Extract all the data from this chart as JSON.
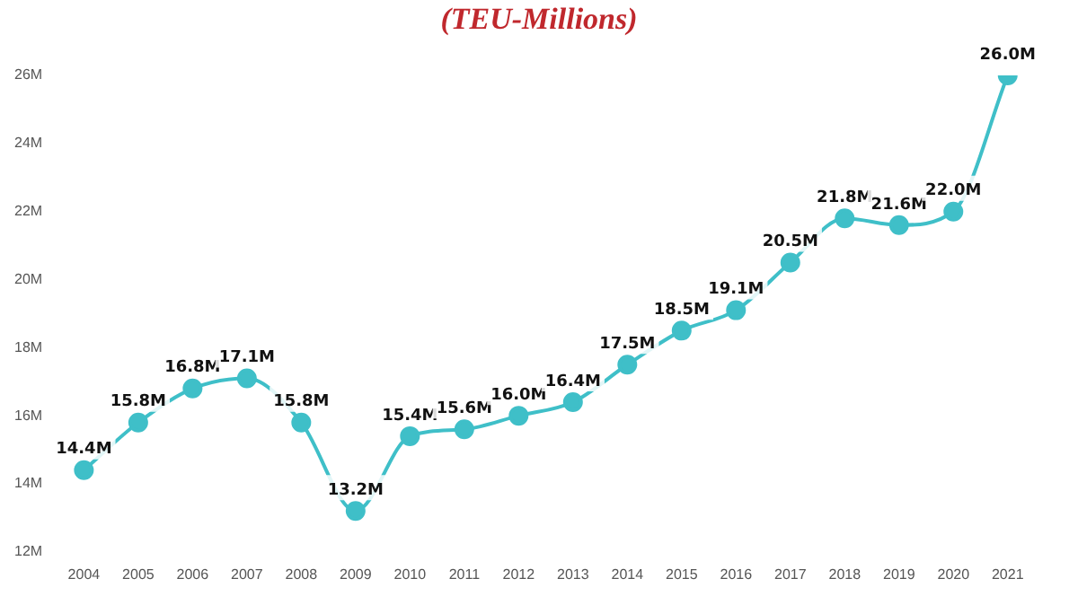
{
  "chart_data": {
    "type": "line",
    "title": "(TEU-Millions)",
    "categories": [
      "2004",
      "2005",
      "2006",
      "2007",
      "2008",
      "2009",
      "2010",
      "2011",
      "2012",
      "2013",
      "2014",
      "2015",
      "2016",
      "2017",
      "2018",
      "2019",
      "2020",
      "2021"
    ],
    "series": [
      {
        "color": "#3fbfc8",
        "values": [
          14.4,
          15.8,
          16.8,
          17.1,
          15.8,
          13.2,
          15.4,
          15.6,
          16.0,
          16.4,
          17.5,
          18.5,
          19.1,
          20.5,
          21.8,
          21.6,
          22.0,
          26.0
        ],
        "value_labels": [
          "14.4M",
          "15.8M",
          "16.8M",
          "17.1M",
          "15.8M",
          "13.2M",
          "15.4M",
          "15.6M",
          "16.0M",
          "16.4M",
          "17.5M",
          "18.5M",
          "19.1M",
          "20.5M",
          "21.8M",
          "21.6M",
          "22.0M",
          "26.0M"
        ]
      }
    ],
    "ylim": [
      12,
      26
    ],
    "yticks": [
      {
        "value": 12,
        "label": "12M"
      },
      {
        "value": 14,
        "label": "14M"
      },
      {
        "value": 16,
        "label": "16M"
      },
      {
        "value": 18,
        "label": "18M"
      },
      {
        "value": 20,
        "label": "20M"
      },
      {
        "value": 22,
        "label": "22M"
      },
      {
        "value": 24,
        "label": "24M"
      },
      {
        "value": 26,
        "label": "26M"
      }
    ],
    "grid": false,
    "legend": false,
    "marker": "circle",
    "line_style": "solid"
  }
}
